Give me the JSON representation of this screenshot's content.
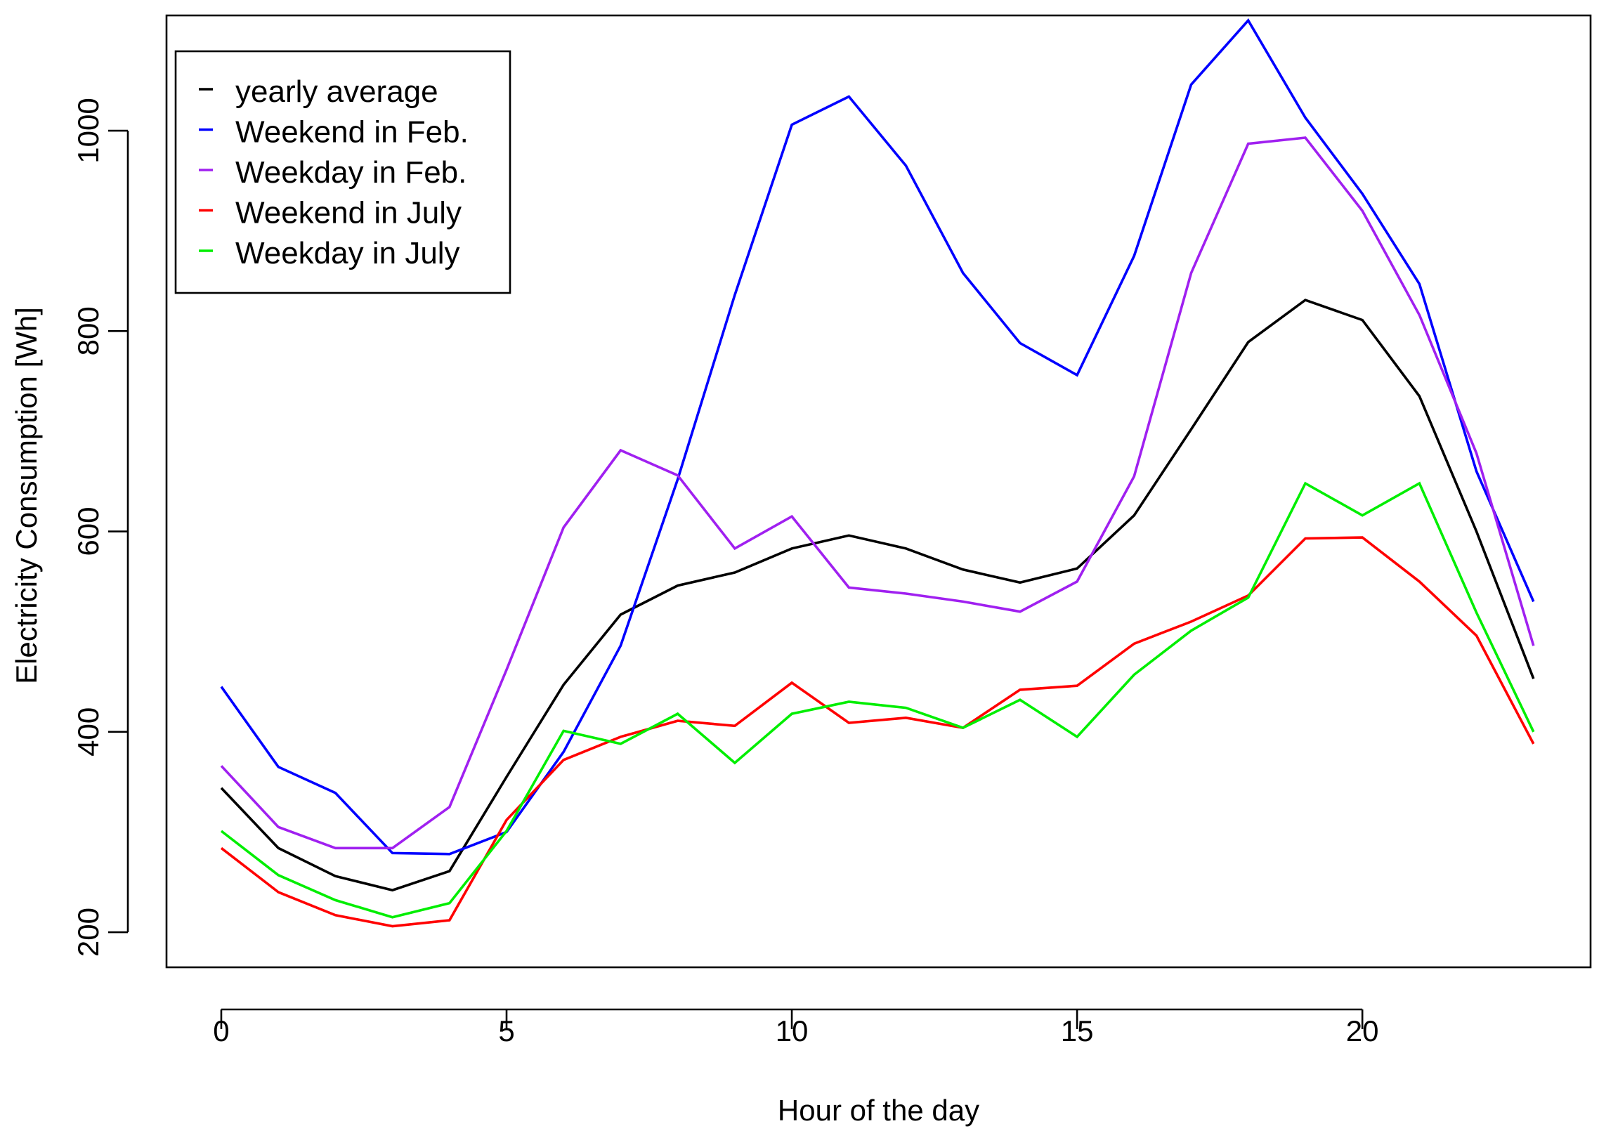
{
  "chart_data": {
    "type": "line",
    "title": "",
    "xlabel": "Hour of the day",
    "ylabel": "Electricity Consumption [Wh]",
    "xlim": [
      -0.96,
      24.0
    ],
    "ylim": [
      165,
      1115
    ],
    "x_ticks": [
      0,
      5,
      10,
      15,
      20
    ],
    "y_ticks": [
      200,
      400,
      600,
      800,
      1000
    ],
    "grid": false,
    "legend_position": "top-left",
    "x": [
      0,
      1,
      2,
      3,
      4,
      5,
      6,
      7,
      8,
      9,
      10,
      11,
      12,
      13,
      14,
      15,
      16,
      17,
      18,
      19,
      20,
      21,
      22,
      23
    ],
    "series": [
      {
        "name": "yearly average",
        "color": "#000000",
        "values": [
          344,
          284,
          256,
          242,
          261,
          355,
          447,
          517,
          546,
          559,
          583,
          596,
          583,
          562,
          549,
          563,
          616,
          702,
          789,
          831,
          811,
          735,
          600,
          453
        ]
      },
      {
        "name": "Weekend in Feb.",
        "color": "#0000ff",
        "values": [
          445,
          365,
          339,
          279,
          278,
          300,
          380,
          486,
          652,
          836,
          1006,
          1034,
          965,
          858,
          788,
          756,
          875,
          1046,
          1110,
          1013,
          937,
          847,
          660,
          530
        ]
      },
      {
        "name": "Weekday in Feb.",
        "color": "#a020f0",
        "values": [
          366,
          305,
          284,
          284,
          325,
          462,
          604,
          681,
          656,
          583,
          615,
          544,
          538,
          530,
          520,
          550,
          655,
          858,
          987,
          993,
          920,
          816,
          678,
          486
        ]
      },
      {
        "name": "Weekend in July",
        "color": "#ff0000",
        "values": [
          284,
          240,
          217,
          206,
          212,
          312,
          372,
          395,
          411,
          406,
          449,
          409,
          414,
          404,
          442,
          446,
          488,
          510,
          536,
          593,
          594,
          550,
          496,
          388
        ]
      },
      {
        "name": "Weekday in July",
        "color": "#00ee00",
        "values": [
          301,
          257,
          232,
          215,
          229,
          301,
          401,
          388,
          418,
          369,
          418,
          430,
          424,
          404,
          432,
          395,
          457,
          501,
          534,
          648,
          616,
          648,
          519,
          400
        ]
      }
    ]
  }
}
